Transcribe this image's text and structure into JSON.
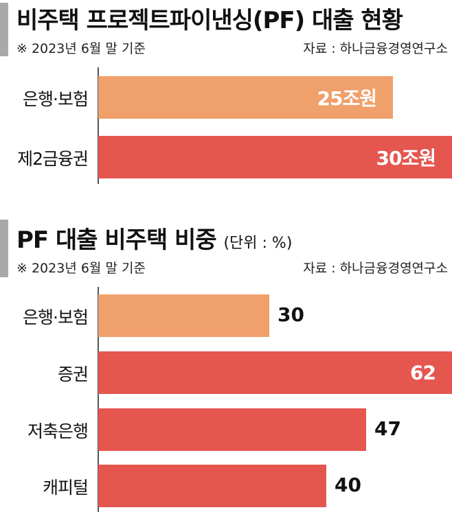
{
  "colors": {
    "orange": "#f0a06a",
    "red": "#e5564f",
    "title_bar": "#a9a9a9"
  },
  "chart_data": [
    {
      "type": "bar",
      "orientation": "horizontal",
      "title": "비주택 프로젝트파이낸싱(PF) 대출 현황",
      "note": "※ 2023년 6월 말 기준",
      "source": "자료 : 하나금융경영연구소",
      "categories": [
        "은행·보험",
        "제2금융권"
      ],
      "values": [
        25,
        30
      ],
      "value_labels": [
        "25조원",
        "30조원"
      ],
      "colors": [
        "#f0a06a",
        "#e5564f"
      ],
      "xlim": [
        0,
        30
      ]
    },
    {
      "type": "bar",
      "orientation": "horizontal",
      "title": "PF 대출 비주택 비중",
      "unit": "(단위 : %)",
      "note": "※ 2023년 6월 말 기준",
      "source": "자료 : 하나금융경영연구소",
      "categories": [
        "은행·보험",
        "증권",
        "저축은행",
        "캐피털"
      ],
      "values": [
        30,
        62,
        47,
        40
      ],
      "value_labels": [
        "30",
        "62",
        "47",
        "40"
      ],
      "colors": [
        "#f0a06a",
        "#e5564f",
        "#e5564f",
        "#e5564f"
      ],
      "xlim": [
        0,
        62
      ]
    }
  ]
}
